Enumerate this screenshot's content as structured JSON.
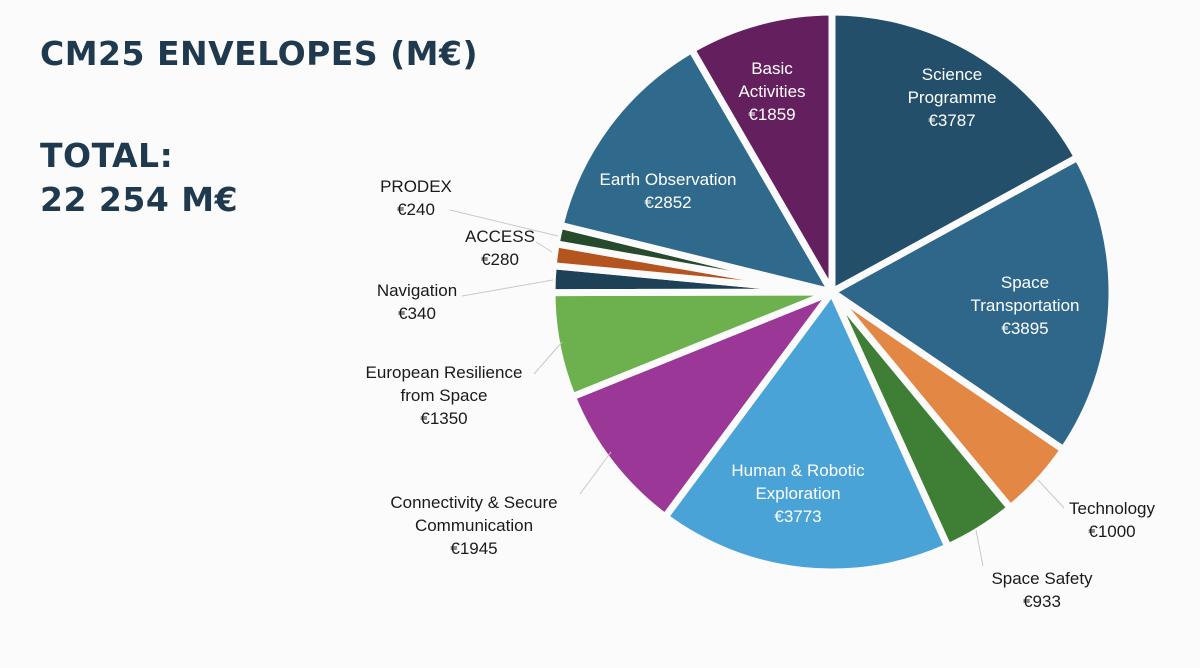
{
  "header": {
    "title": "CM25 ENVELOPES (M€)",
    "total_line1": "TOTAL:",
    "total_line2": "22 254 M€"
  },
  "chart_data": {
    "type": "pie",
    "title": "CM25 ENVELOPES (M€)",
    "total_label": "22 254 M€",
    "slices": [
      {
        "name": "Science Programme",
        "lines": [
          "Science",
          "Programme"
        ],
        "value": 3787,
        "value_label": "€3787",
        "color": "#244f6a",
        "label_pos": "inside"
      },
      {
        "name": "Space Transportation",
        "lines": [
          "Space",
          "Transportation"
        ],
        "value": 3895,
        "value_label": "€3895",
        "color": "#2e6789",
        "label_pos": "inside"
      },
      {
        "name": "Technology",
        "lines": [
          "Technology"
        ],
        "value": 1000,
        "value_label": "€1000",
        "color": "#e38745",
        "label_pos": "outside"
      },
      {
        "name": "Space Safety",
        "lines": [
          "Space Safety"
        ],
        "value": 933,
        "value_label": "€933",
        "color": "#3f7f35",
        "label_pos": "outside"
      },
      {
        "name": "Human & Robotic Exploration",
        "lines": [
          "Human & Robotic",
          "Exploration"
        ],
        "value": 3773,
        "value_label": "€3773",
        "color": "#4aa3d6",
        "label_pos": "inside"
      },
      {
        "name": "Connectivity & Secure Communication",
        "lines": [
          "Connectivity & Secure",
          "Communication"
        ],
        "value": 1945,
        "value_label": "€1945",
        "color": "#9b3796",
        "label_pos": "outside"
      },
      {
        "name": "European Resilience from Space",
        "lines": [
          "European Resilience",
          "from Space"
        ],
        "value": 1350,
        "value_label": "€1350",
        "color": "#6cb14d",
        "label_pos": "outside"
      },
      {
        "name": "Navigation",
        "lines": [
          "Navigation"
        ],
        "value": 340,
        "value_label": "€340",
        "color": "#1e4157",
        "label_pos": "outside"
      },
      {
        "name": "ACCESS",
        "lines": [
          "ACCESS"
        ],
        "value": 280,
        "value_label": "€280",
        "color": "#b4541f",
        "label_pos": "outside"
      },
      {
        "name": "PRODEX",
        "lines": [
          "PRODEX"
        ],
        "value": 240,
        "value_label": "€240",
        "color": "#27492c",
        "label_pos": "outside"
      },
      {
        "name": "Earth Observation",
        "lines": [
          "Earth Observation"
        ],
        "value": 2852,
        "value_label": "€2852",
        "color": "#2f6a8d",
        "label_pos": "inside"
      },
      {
        "name": "Basic Activities",
        "lines": [
          "Basic",
          "Activities"
        ],
        "value": 1859,
        "value_label": "€1859",
        "color": "#641f5e",
        "label_pos": "inside"
      }
    ]
  }
}
